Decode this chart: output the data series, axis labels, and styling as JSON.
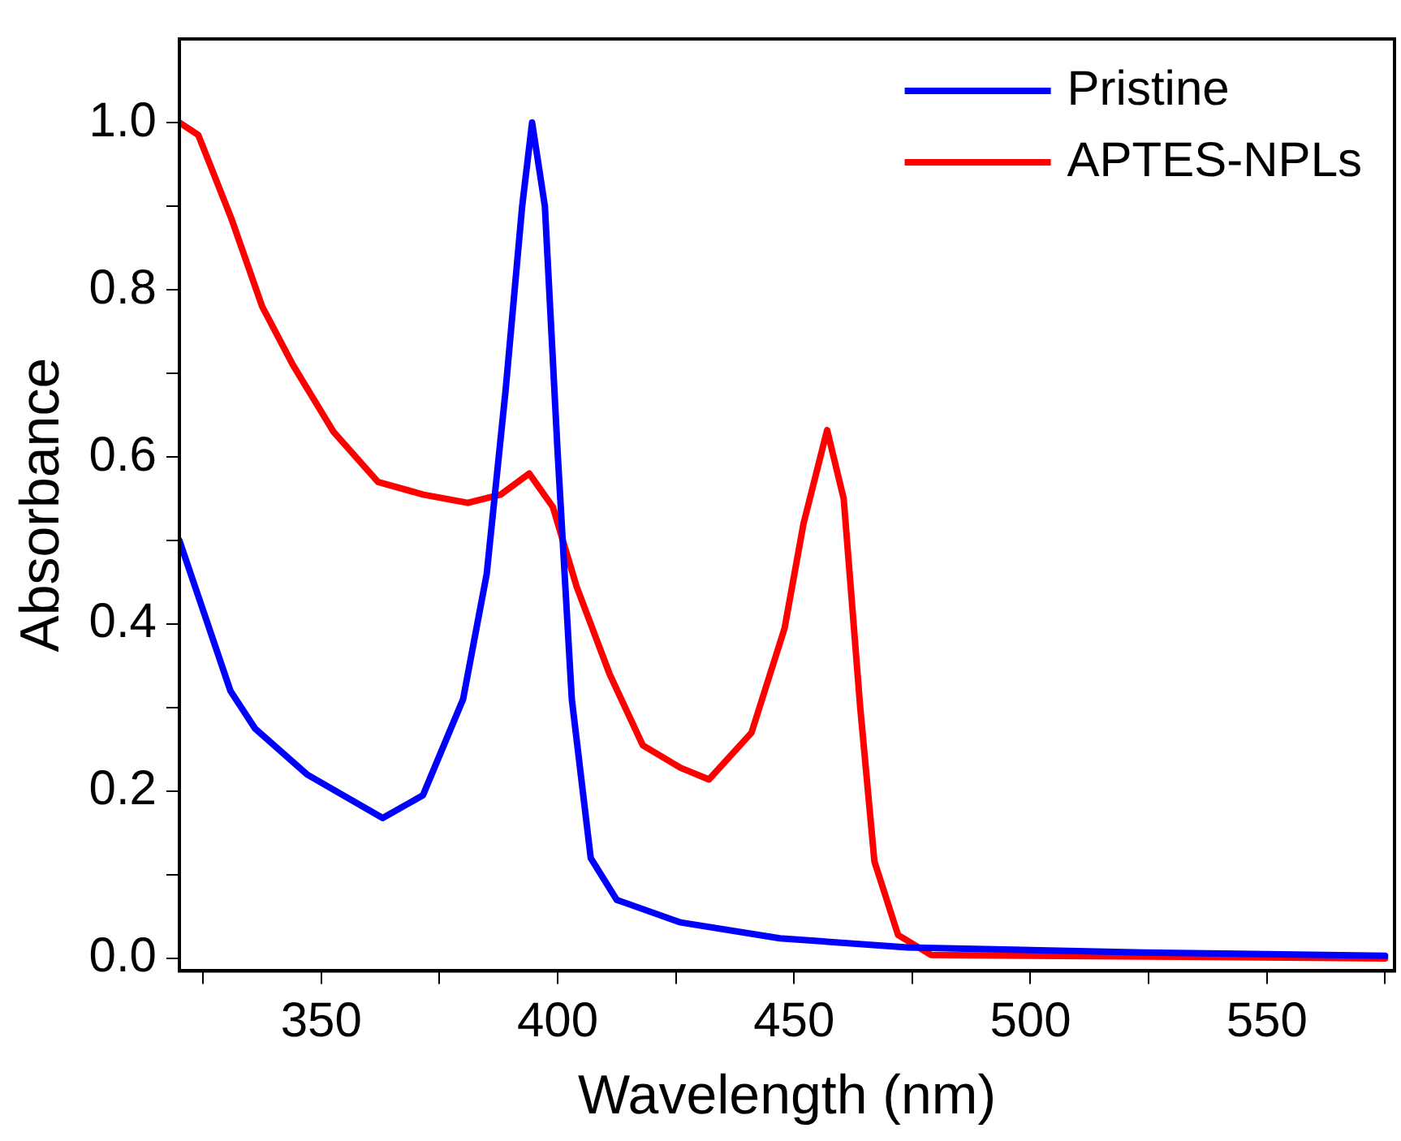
{
  "chart_data": {
    "type": "line",
    "xlabel": "Wavelength (nm)",
    "ylabel": "Absorbance",
    "xlim": [
      320,
      577
    ],
    "ylim": [
      -0.015,
      1.1
    ],
    "xticks": [
      {
        "value": 325,
        "label": null
      },
      350,
      {
        "value": 375,
        "label": null
      },
      400,
      {
        "value": 425,
        "label": null
      },
      450,
      {
        "value": 475,
        "label": null
      },
      500,
      {
        "value": 525,
        "label": null
      },
      550,
      {
        "value": 575,
        "label": null
      }
    ],
    "yticks": [
      {
        "value": 0,
        "label": "0.0"
      },
      {
        "value": 0.1,
        "label": null
      },
      0.2,
      {
        "value": 0.3,
        "label": null
      },
      0.4,
      {
        "value": 0.5,
        "label": null
      },
      0.6,
      {
        "value": 0.7,
        "label": null
      },
      0.8,
      {
        "value": 0.9,
        "label": null
      },
      {
        "value": 1,
        "label": "1.0"
      }
    ],
    "grid": false,
    "legend": "top right",
    "marker": "none",
    "line_style": "solid",
    "series": [
      {
        "name": "Pristine",
        "color": "#0000ff",
        "x": [
          320,
          330.8,
          336,
          347,
          363,
          371.5,
          380,
          385,
          389,
          392.5,
          394.6,
          397.3,
          400,
          403,
          407,
          412.5,
          426,
          447,
          474,
          524,
          575
        ],
        "values": [
          0.5,
          0.32,
          0.275,
          0.22,
          0.168,
          0.195,
          0.31,
          0.46,
          0.68,
          0.9,
          1.0,
          0.9,
          0.605,
          0.31,
          0.12,
          0.07,
          0.043,
          0.024,
          0.013,
          0.007,
          0.003
        ]
      },
      {
        "name": "APTES-NPLs",
        "color": "#ff0000",
        "x": [
          320,
          324,
          331,
          337.5,
          344,
          352.6,
          362,
          371.5,
          381,
          388,
          394,
          399,
          404,
          411,
          418,
          426,
          432,
          441,
          448,
          452,
          457,
          460.5,
          464,
          467,
          472,
          479,
          575
        ],
        "values": [
          1.0,
          0.985,
          0.885,
          0.78,
          0.71,
          0.63,
          0.57,
          0.555,
          0.545,
          0.555,
          0.58,
          0.54,
          0.445,
          0.34,
          0.255,
          0.228,
          0.214,
          0.27,
          0.395,
          0.52,
          0.632,
          0.55,
          0.3,
          0.116,
          0.028,
          0.004,
          0.0
        ]
      }
    ]
  }
}
